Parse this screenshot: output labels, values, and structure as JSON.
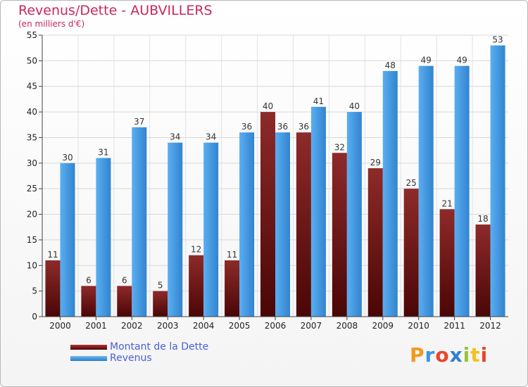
{
  "title": "Revenus/Dette - AUBVILLERS",
  "subtitle": "(en milliers d'€)",
  "colors": {
    "debt": "#8b1a1a",
    "revenue": "#3a96df",
    "title": "#c8285a",
    "legend_text": "#4a5ed8"
  },
  "legend": {
    "items": [
      {
        "label": "Montant de la Dette",
        "color": "#6b0f0f"
      },
      {
        "label": "Revenus",
        "color": "#3a96df"
      }
    ]
  },
  "logo": {
    "text": "Proxiti"
  },
  "chart_data": {
    "type": "bar",
    "title": "Revenus/Dette - AUBVILLERS",
    "subtitle": "(en milliers d'€)",
    "categories": [
      "2000",
      "2001",
      "2002",
      "2003",
      "2004",
      "2005",
      "2006",
      "2007",
      "2008",
      "2009",
      "2010",
      "2011",
      "2012"
    ],
    "series": [
      {
        "name": "Montant de la Dette",
        "values": [
          11,
          6,
          6,
          5,
          12,
          11,
          40,
          36,
          32,
          29,
          25,
          21,
          18
        ]
      },
      {
        "name": "Revenus",
        "values": [
          30,
          31,
          37,
          34,
          34,
          36,
          36,
          41,
          40,
          48,
          49,
          49,
          53
        ]
      }
    ],
    "ylim": [
      0,
      55
    ],
    "yticks": [
      0,
      5,
      10,
      15,
      20,
      25,
      30,
      35,
      40,
      45,
      50,
      55
    ],
    "grid": true,
    "legend_position": "bottom-left"
  }
}
